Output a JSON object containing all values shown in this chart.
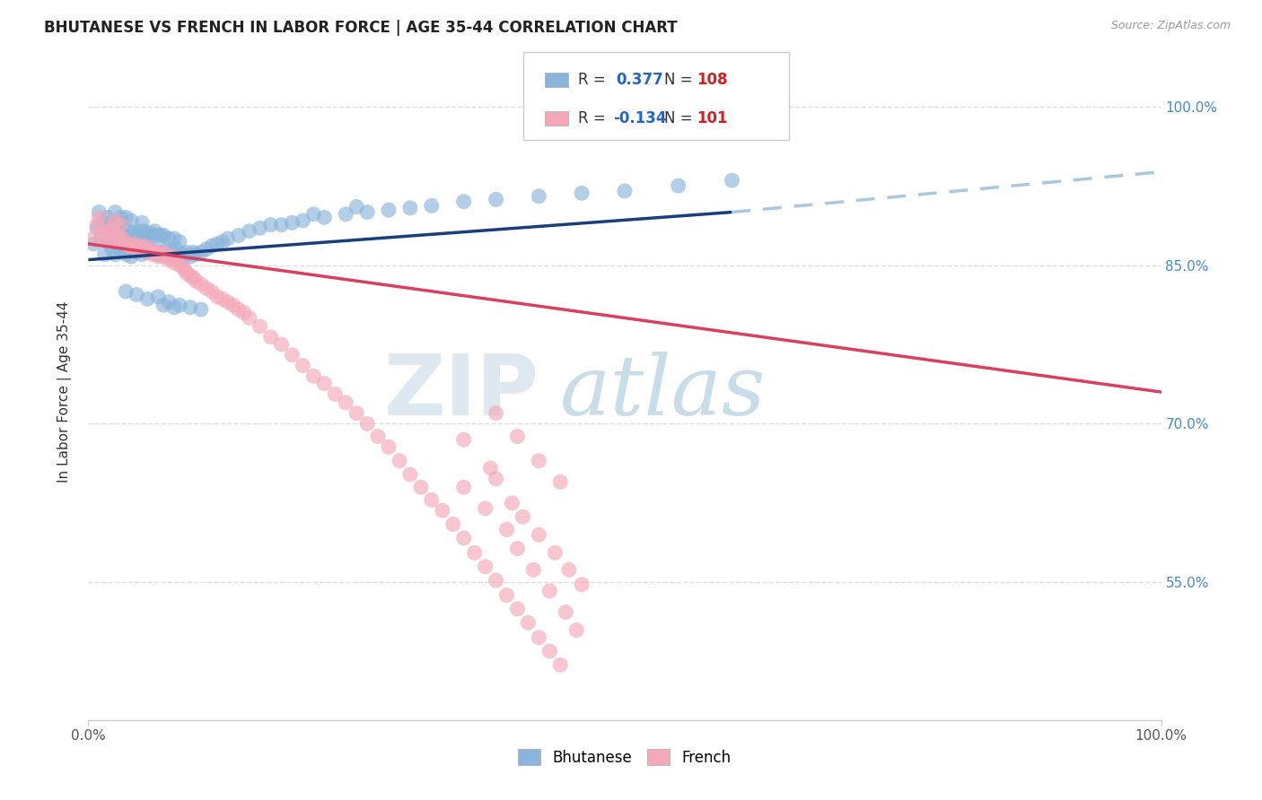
{
  "title": "BHUTANESE VS FRENCH IN LABOR FORCE | AGE 35-44 CORRELATION CHART",
  "source_text": "Source: ZipAtlas.com",
  "ylabel": "In Labor Force | Age 35-44",
  "xlim": [
    0.0,
    1.0
  ],
  "ylim": [
    0.42,
    1.04
  ],
  "ytick_vals": [
    0.55,
    0.7,
    0.85,
    1.0
  ],
  "ytick_labels": [
    "55.0%",
    "70.0%",
    "85.0%",
    "100.0%"
  ],
  "bhutanese_color": "#8ab4db",
  "french_color": "#f4a8b8",
  "trend_blue_color": "#1a3e7a",
  "trend_pink_color": "#d94060",
  "dashed_line_color": "#a8c8e0",
  "watermark_text": "ZIPatlas",
  "watermark_color": "#ccdde8",
  "background_color": "#ffffff",
  "legend_R_color": "#2266cc",
  "legend_N_color": "#cc2222",
  "bhutanese_R": "0.377",
  "bhutanese_N": "108",
  "french_R": "-0.134",
  "french_N": "101",
  "trend_b_x0": 0.0,
  "trend_b_y0": 0.855,
  "trend_b_x1": 0.6,
  "trend_b_y1": 0.9,
  "trend_b_dash_x0": 0.6,
  "trend_b_dash_y0": 0.9,
  "trend_b_dash_x1": 1.02,
  "trend_b_dash_y1": 0.94,
  "trend_f_x0": 0.0,
  "trend_f_y0": 0.87,
  "trend_f_x1": 1.0,
  "trend_f_y1": 0.73,
  "bhutanese_scatter_x": [
    0.005,
    0.008,
    0.01,
    0.012,
    0.015,
    0.015,
    0.018,
    0.018,
    0.02,
    0.02,
    0.022,
    0.022,
    0.025,
    0.025,
    0.025,
    0.028,
    0.028,
    0.03,
    0.03,
    0.03,
    0.032,
    0.032,
    0.035,
    0.035,
    0.035,
    0.038,
    0.038,
    0.04,
    0.04,
    0.04,
    0.042,
    0.042,
    0.045,
    0.045,
    0.048,
    0.048,
    0.05,
    0.05,
    0.05,
    0.052,
    0.052,
    0.055,
    0.055,
    0.058,
    0.058,
    0.06,
    0.06,
    0.062,
    0.062,
    0.065,
    0.065,
    0.068,
    0.068,
    0.07,
    0.07,
    0.072,
    0.075,
    0.075,
    0.078,
    0.08,
    0.08,
    0.082,
    0.085,
    0.085,
    0.088,
    0.09,
    0.092,
    0.095,
    0.098,
    0.1,
    0.105,
    0.11,
    0.115,
    0.12,
    0.125,
    0.13,
    0.14,
    0.15,
    0.16,
    0.17,
    0.18,
    0.19,
    0.2,
    0.22,
    0.24,
    0.26,
    0.28,
    0.3,
    0.32,
    0.35,
    0.38,
    0.42,
    0.46,
    0.5,
    0.55,
    0.6,
    0.25,
    0.21,
    0.065,
    0.075,
    0.085,
    0.095,
    0.105,
    0.035,
    0.045,
    0.055,
    0.07,
    0.08
  ],
  "bhutanese_scatter_y": [
    0.87,
    0.885,
    0.9,
    0.875,
    0.86,
    0.89,
    0.875,
    0.895,
    0.87,
    0.89,
    0.865,
    0.885,
    0.86,
    0.88,
    0.9,
    0.87,
    0.89,
    0.865,
    0.88,
    0.895,
    0.87,
    0.885,
    0.86,
    0.878,
    0.895,
    0.865,
    0.882,
    0.858,
    0.875,
    0.892,
    0.865,
    0.88,
    0.862,
    0.878,
    0.865,
    0.882,
    0.86,
    0.875,
    0.89,
    0.868,
    0.882,
    0.862,
    0.878,
    0.865,
    0.88,
    0.862,
    0.878,
    0.865,
    0.882,
    0.86,
    0.878,
    0.862,
    0.878,
    0.86,
    0.878,
    0.865,
    0.858,
    0.875,
    0.862,
    0.858,
    0.875,
    0.865,
    0.855,
    0.872,
    0.86,
    0.858,
    0.862,
    0.858,
    0.862,
    0.86,
    0.862,
    0.865,
    0.868,
    0.87,
    0.872,
    0.875,
    0.878,
    0.882,
    0.885,
    0.888,
    0.888,
    0.89,
    0.892,
    0.895,
    0.898,
    0.9,
    0.902,
    0.904,
    0.906,
    0.91,
    0.912,
    0.915,
    0.918,
    0.92,
    0.925,
    0.93,
    0.905,
    0.898,
    0.82,
    0.815,
    0.812,
    0.81,
    0.808,
    0.825,
    0.822,
    0.818,
    0.812,
    0.81
  ],
  "french_scatter_x": [
    0.005,
    0.008,
    0.01,
    0.012,
    0.015,
    0.018,
    0.02,
    0.022,
    0.025,
    0.025,
    0.028,
    0.03,
    0.03,
    0.032,
    0.035,
    0.038,
    0.04,
    0.042,
    0.045,
    0.048,
    0.05,
    0.052,
    0.055,
    0.058,
    0.06,
    0.062,
    0.065,
    0.068,
    0.07,
    0.072,
    0.075,
    0.078,
    0.08,
    0.082,
    0.085,
    0.088,
    0.09,
    0.092,
    0.095,
    0.098,
    0.1,
    0.105,
    0.11,
    0.115,
    0.12,
    0.125,
    0.13,
    0.135,
    0.14,
    0.145,
    0.15,
    0.16,
    0.17,
    0.18,
    0.19,
    0.2,
    0.21,
    0.22,
    0.23,
    0.24,
    0.25,
    0.26,
    0.27,
    0.28,
    0.29,
    0.3,
    0.31,
    0.32,
    0.33,
    0.34,
    0.35,
    0.36,
    0.37,
    0.38,
    0.39,
    0.4,
    0.41,
    0.42,
    0.43,
    0.44,
    0.35,
    0.37,
    0.39,
    0.4,
    0.415,
    0.43,
    0.445,
    0.455,
    0.35,
    0.375,
    0.38,
    0.395,
    0.405,
    0.42,
    0.435,
    0.448,
    0.46,
    0.38,
    0.4,
    0.42,
    0.44
  ],
  "french_scatter_y": [
    0.875,
    0.888,
    0.895,
    0.882,
    0.875,
    0.882,
    0.872,
    0.885,
    0.875,
    0.892,
    0.878,
    0.872,
    0.888,
    0.875,
    0.87,
    0.868,
    0.868,
    0.87,
    0.865,
    0.868,
    0.865,
    0.868,
    0.862,
    0.865,
    0.86,
    0.862,
    0.858,
    0.862,
    0.858,
    0.86,
    0.855,
    0.858,
    0.852,
    0.855,
    0.85,
    0.848,
    0.845,
    0.842,
    0.84,
    0.838,
    0.835,
    0.832,
    0.828,
    0.825,
    0.82,
    0.818,
    0.815,
    0.812,
    0.808,
    0.805,
    0.8,
    0.792,
    0.782,
    0.775,
    0.765,
    0.755,
    0.745,
    0.738,
    0.728,
    0.72,
    0.71,
    0.7,
    0.688,
    0.678,
    0.665,
    0.652,
    0.64,
    0.628,
    0.618,
    0.605,
    0.592,
    0.578,
    0.565,
    0.552,
    0.538,
    0.525,
    0.512,
    0.498,
    0.485,
    0.472,
    0.64,
    0.62,
    0.6,
    0.582,
    0.562,
    0.542,
    0.522,
    0.505,
    0.685,
    0.658,
    0.648,
    0.625,
    0.612,
    0.595,
    0.578,
    0.562,
    0.548,
    0.71,
    0.688,
    0.665,
    0.645
  ]
}
